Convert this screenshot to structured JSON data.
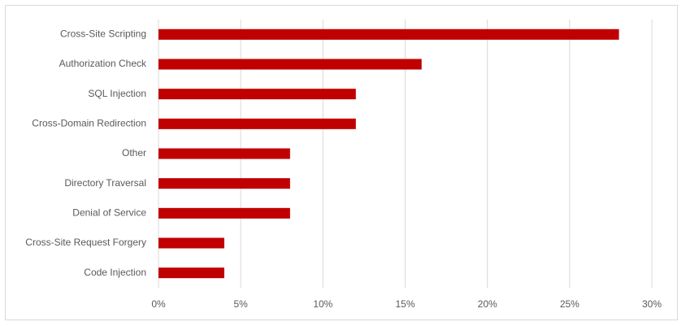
{
  "chart_data": {
    "type": "hbar",
    "categories": [
      "Cross-Site Scripting",
      "Authorization Check",
      "SQL Injection",
      "Cross-Domain Redirection",
      "Other",
      "Directory Traversal",
      "Denial of Service",
      "Cross-Site Request Forgery",
      "Code Injection"
    ],
    "values": [
      28,
      16,
      12,
      12,
      8,
      8,
      8,
      4,
      4
    ],
    "color": "#c00000",
    "xlim": [
      0,
      30
    ],
    "xticks": [
      {
        "value": 0,
        "label": "0%"
      },
      {
        "value": 5,
        "label": "5%"
      },
      {
        "value": 10,
        "label": "10%"
      },
      {
        "value": 15,
        "label": "15%"
      },
      {
        "value": 20,
        "label": "20%"
      },
      {
        "value": 25,
        "label": "25%"
      },
      {
        "value": 30,
        "label": "30%"
      }
    ],
    "grid": true
  }
}
